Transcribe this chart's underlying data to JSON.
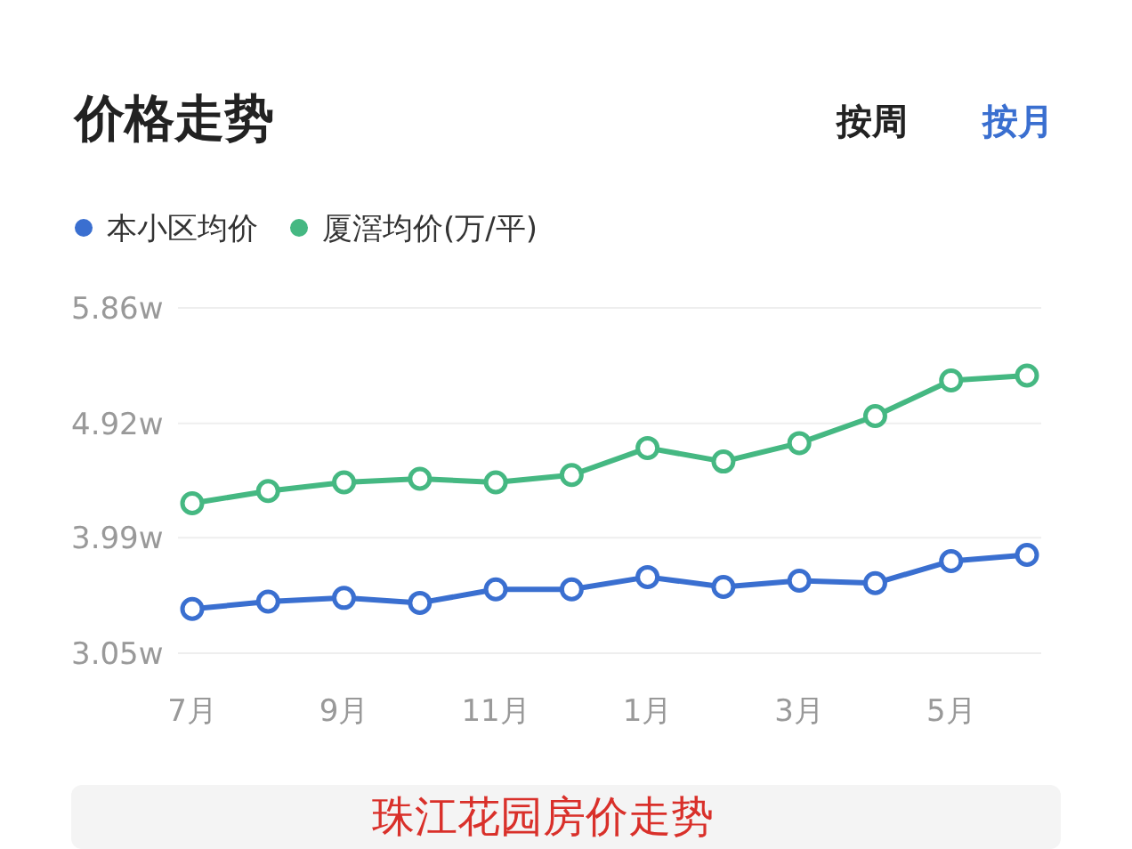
{
  "chart_data": {
    "type": "line",
    "title": "价格走势",
    "annotations": [
      "按周",
      "按月",
      "珠江花园房价走势"
    ],
    "categories": [
      "7月",
      null,
      "9月",
      null,
      "11月",
      null,
      "1月",
      null,
      "3月",
      null,
      "5月",
      null
    ],
    "series": [
      {
        "name": "本小区均价",
        "color": "#3a6fd0",
        "values": [
          3.41,
          3.47,
          3.5,
          3.46,
          3.57,
          3.57,
          3.67,
          3.59,
          3.64,
          3.62,
          3.8,
          3.85
        ]
      },
      {
        "name": "厦滘均价(万/平)",
        "color": "#45b882",
        "values": [
          4.27,
          4.37,
          4.44,
          4.47,
          4.44,
          4.5,
          4.72,
          4.61,
          4.76,
          4.98,
          5.27,
          5.31
        ]
      }
    ],
    "ylim": [
      3.05,
      5.86
    ],
    "yticks": [
      {
        "value": 3.05,
        "label": "3.05w"
      },
      {
        "value": 3.99,
        "label": "3.99w"
      },
      {
        "value": 4.92,
        "label": "4.92w"
      },
      {
        "value": 5.86,
        "label": "5.86w"
      }
    ],
    "grid": "y",
    "legend": "top left",
    "marker": "circle",
    "line_style": "solid"
  }
}
